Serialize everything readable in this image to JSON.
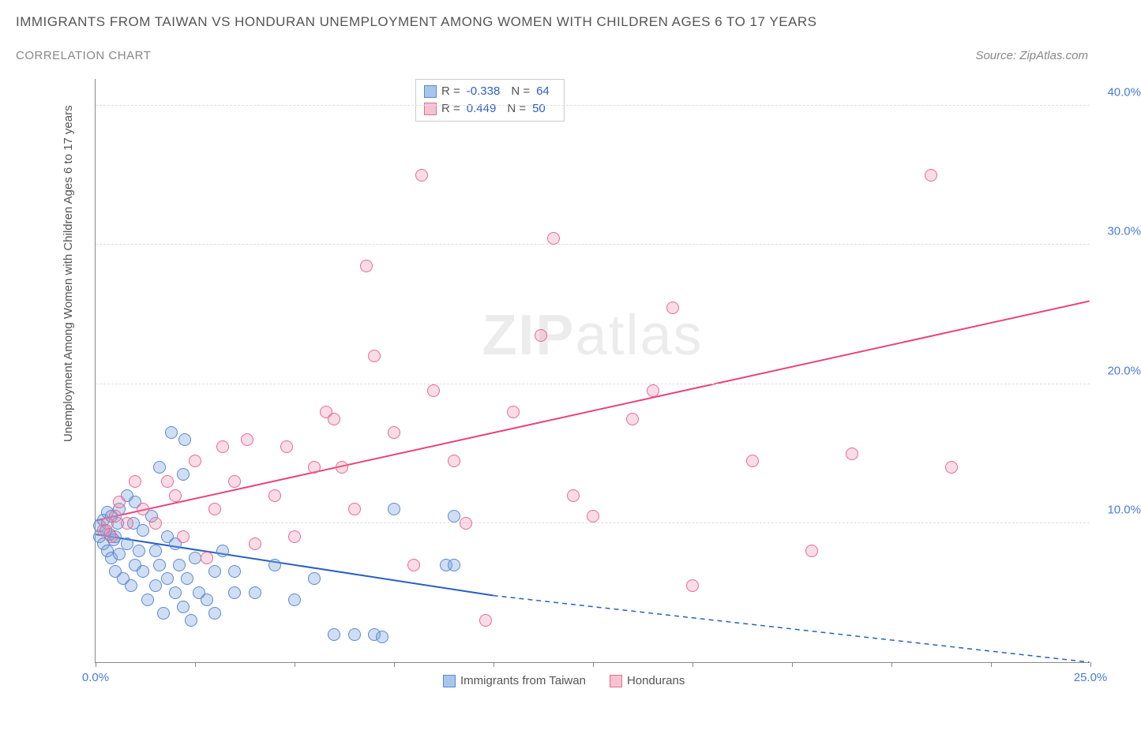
{
  "title": "IMMIGRANTS FROM TAIWAN VS HONDURAN UNEMPLOYMENT AMONG WOMEN WITH CHILDREN AGES 6 TO 17 YEARS",
  "subtitle": "CORRELATION CHART",
  "source": "Source: ZipAtlas.com",
  "y_axis_label": "Unemployment Among Women with Children Ages 6 to 17 years",
  "watermark_bold": "ZIP",
  "watermark_light": "atlas",
  "chart": {
    "type": "scatter",
    "xlim": [
      0,
      25
    ],
    "ylim": [
      0,
      42
    ],
    "x_ticks": [
      0,
      2.5,
      5,
      7.5,
      10,
      12.5,
      15,
      17.5,
      20,
      22.5,
      25
    ],
    "x_tick_labels": {
      "0": "0.0%",
      "25": "25.0%"
    },
    "y_ticks": [
      10,
      20,
      30,
      40
    ],
    "y_tick_labels": [
      "10.0%",
      "20.0%",
      "30.0%",
      "40.0%"
    ],
    "grid_color": "#dddddd",
    "axis_color": "#888888",
    "background_color": "#ffffff",
    "marker_radius": 8,
    "marker_stroke_width": 1.2,
    "series": [
      {
        "name": "Immigrants from Taiwan",
        "fill": "rgba(120,160,220,0.35)",
        "stroke": "#5a8ad0",
        "swatch_fill": "#a9c5ea",
        "swatch_border": "#5a8ad0",
        "R": "-0.338",
        "N": "64",
        "trend": {
          "x1": 0,
          "y1": 9.2,
          "x2": 10,
          "y2": 4.8,
          "x2_dash": 25,
          "y2_dash": 0.0,
          "color": "#2a5fc0",
          "width": 2
        },
        "points": [
          [
            0.1,
            9.0
          ],
          [
            0.1,
            9.8
          ],
          [
            0.2,
            8.5
          ],
          [
            0.2,
            10.2
          ],
          [
            0.25,
            9.5
          ],
          [
            0.3,
            8.0
          ],
          [
            0.3,
            10.8
          ],
          [
            0.35,
            9.2
          ],
          [
            0.4,
            7.5
          ],
          [
            0.4,
            10.5
          ],
          [
            0.45,
            8.8
          ],
          [
            0.5,
            9.0
          ],
          [
            0.5,
            6.5
          ],
          [
            0.55,
            10.0
          ],
          [
            0.6,
            7.8
          ],
          [
            0.6,
            11.0
          ],
          [
            0.7,
            6.0
          ],
          [
            0.8,
            8.5
          ],
          [
            0.8,
            12.0
          ],
          [
            0.9,
            5.5
          ],
          [
            0.95,
            10.0
          ],
          [
            1.0,
            7.0
          ],
          [
            1.0,
            11.5
          ],
          [
            1.1,
            8.0
          ],
          [
            1.2,
            6.5
          ],
          [
            1.2,
            9.5
          ],
          [
            1.3,
            4.5
          ],
          [
            1.4,
            10.5
          ],
          [
            1.5,
            5.5
          ],
          [
            1.5,
            8.0
          ],
          [
            1.6,
            7.0
          ],
          [
            1.6,
            14.0
          ],
          [
            1.7,
            3.5
          ],
          [
            1.8,
            6.0
          ],
          [
            1.8,
            9.0
          ],
          [
            1.9,
            16.5
          ],
          [
            2.0,
            5.0
          ],
          [
            2.0,
            8.5
          ],
          [
            2.1,
            7.0
          ],
          [
            2.2,
            4.0
          ],
          [
            2.2,
            13.5
          ],
          [
            2.25,
            16.0
          ],
          [
            2.3,
            6.0
          ],
          [
            2.4,
            3.0
          ],
          [
            2.5,
            7.5
          ],
          [
            2.6,
            5.0
          ],
          [
            2.8,
            4.5
          ],
          [
            3.0,
            6.5
          ],
          [
            3.0,
            3.5
          ],
          [
            3.2,
            8.0
          ],
          [
            3.5,
            5.0
          ],
          [
            3.5,
            6.5
          ],
          [
            4.0,
            5.0
          ],
          [
            4.5,
            7.0
          ],
          [
            5.0,
            4.5
          ],
          [
            5.5,
            6.0
          ],
          [
            6.0,
            2.0
          ],
          [
            6.5,
            2.0
          ],
          [
            7.0,
            2.0
          ],
          [
            7.2,
            1.8
          ],
          [
            7.5,
            11.0
          ],
          [
            8.8,
            7.0
          ],
          [
            9.0,
            7.0
          ],
          [
            9.0,
            10.5
          ]
        ]
      },
      {
        "name": "Hondurans",
        "fill": "rgba(235,140,170,0.30)",
        "stroke": "#e86b94",
        "swatch_fill": "#f3c3d2",
        "swatch_border": "#e86b94",
        "R": "0.449",
        "N": "50",
        "trend": {
          "x1": 0,
          "y1": 10.2,
          "x2": 25,
          "y2": 26.0,
          "color": "#e8447a",
          "width": 2
        },
        "points": [
          [
            0.2,
            9.5
          ],
          [
            0.3,
            10.0
          ],
          [
            0.4,
            9.0
          ],
          [
            0.5,
            10.5
          ],
          [
            0.6,
            11.5
          ],
          [
            0.8,
            10.0
          ],
          [
            1.0,
            13.0
          ],
          [
            1.2,
            11.0
          ],
          [
            1.5,
            10.0
          ],
          [
            1.8,
            13.0
          ],
          [
            2.0,
            12.0
          ],
          [
            2.2,
            9.0
          ],
          [
            2.5,
            14.5
          ],
          [
            2.8,
            7.5
          ],
          [
            3.0,
            11.0
          ],
          [
            3.2,
            15.5
          ],
          [
            3.5,
            13.0
          ],
          [
            3.8,
            16.0
          ],
          [
            4.0,
            8.5
          ],
          [
            4.5,
            12.0
          ],
          [
            4.8,
            15.5
          ],
          [
            5.0,
            9.0
          ],
          [
            5.5,
            14.0
          ],
          [
            5.8,
            18.0
          ],
          [
            6.0,
            17.5
          ],
          [
            6.2,
            14.0
          ],
          [
            6.5,
            11.0
          ],
          [
            6.8,
            28.5
          ],
          [
            7.0,
            22.0
          ],
          [
            7.5,
            16.5
          ],
          [
            8.0,
            7.0
          ],
          [
            8.2,
            35.0
          ],
          [
            8.5,
            19.5
          ],
          [
            9.0,
            14.5
          ],
          [
            9.3,
            10.0
          ],
          [
            9.8,
            3.0
          ],
          [
            10.5,
            18.0
          ],
          [
            11.2,
            23.5
          ],
          [
            11.5,
            30.5
          ],
          [
            12.0,
            12.0
          ],
          [
            12.5,
            10.5
          ],
          [
            13.5,
            17.5
          ],
          [
            14.0,
            19.5
          ],
          [
            14.5,
            25.5
          ],
          [
            15.0,
            5.5
          ],
          [
            16.5,
            14.5
          ],
          [
            18.0,
            8.0
          ],
          [
            19.0,
            15.0
          ],
          [
            21.0,
            35.0
          ],
          [
            21.5,
            14.0
          ]
        ]
      }
    ]
  },
  "legend_stats_labels": {
    "R": "R =",
    "N": "N ="
  },
  "bottom_legend": [
    {
      "label": "Immigrants from Taiwan",
      "fill": "#a9c5ea",
      "border": "#5a8ad0"
    },
    {
      "label": "Hondurans",
      "fill": "#f3c3d2",
      "border": "#e86b94"
    }
  ]
}
